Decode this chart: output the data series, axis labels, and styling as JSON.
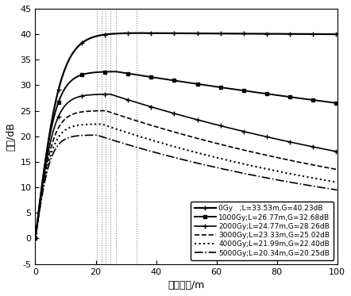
{
  "title": "",
  "xlabel": "光纤长度/m",
  "ylabel": "增益/dB",
  "xlim": [
    0,
    100
  ],
  "ylim": [
    -5,
    45
  ],
  "xticks": [
    0,
    20,
    40,
    60,
    80,
    100
  ],
  "yticks": [
    -5,
    0,
    5,
    10,
    15,
    20,
    25,
    30,
    35,
    40,
    45
  ],
  "series": [
    {
      "label": "0Gy   ;L=33.53m,G=40.23dB",
      "L": 33.53,
      "G": 40.23,
      "end_val": 40.0,
      "linestyle": "-",
      "marker": "+",
      "markersize": 5,
      "linewidth": 1.6,
      "color": "#000000"
    },
    {
      "label": "1000Gy;L=26.77m,G=32.68dB",
      "L": 26.77,
      "G": 32.68,
      "end_val": 26.5,
      "linestyle": "-",
      "marker": "s",
      "markersize": 3.5,
      "linewidth": 1.4,
      "color": "#000000"
    },
    {
      "label": "2000Gy;L=24.77m,G=28.26dB",
      "L": 24.77,
      "G": 28.26,
      "end_val": 17.0,
      "linestyle": "-",
      "marker": "+",
      "markersize": 5,
      "linewidth": 1.2,
      "color": "#000000"
    },
    {
      "label": "3000Gy;L=23.33m,G=25.02dB",
      "L": 23.33,
      "G": 25.02,
      "end_val": 13.5,
      "linestyle": "--",
      "marker": "",
      "markersize": 0,
      "linewidth": 1.2,
      "color": "#000000"
    },
    {
      "label": "4000Gy;L=21.99m,G=22.40dB",
      "L": 21.99,
      "G": 22.4,
      "end_val": 11.0,
      "linestyle": ":",
      "marker": "",
      "markersize": 0,
      "linewidth": 1.5,
      "color": "#000000"
    },
    {
      "label": "5000Gy;L=20.34m,G=20.25dB",
      "L": 20.34,
      "G": 20.25,
      "end_val": 9.5,
      "linestyle": "-.",
      "marker": "",
      "markersize": 0,
      "linewidth": 1.2,
      "color": "#000000"
    }
  ],
  "vlines": [
    20.34,
    21.99,
    23.33,
    24.77,
    26.77,
    33.53
  ],
  "background_color": "#ffffff",
  "legend_fontsize": 6.5,
  "axis_fontsize": 9
}
